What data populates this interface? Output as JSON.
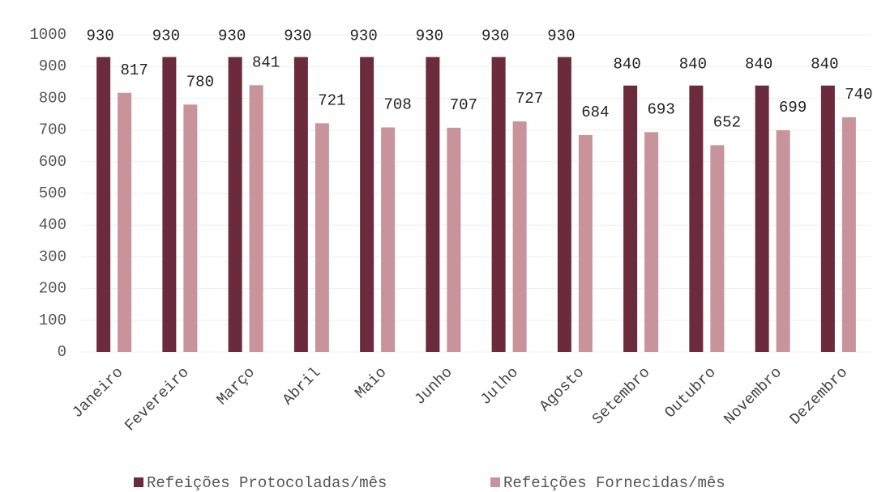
{
  "chart_data": {
    "type": "bar",
    "categories": [
      "Janeiro",
      "Fevereiro",
      "Março",
      "Abril",
      "Maio",
      "Junho",
      "Julho",
      "Agosto",
      "Setembro",
      "Outubro",
      "Novembro",
      "Dezembro"
    ],
    "series": [
      {
        "name": "Refeições Protocoladas/mês",
        "color": "#6b2b3d",
        "values": [
          930,
          930,
          930,
          930,
          930,
          930,
          930,
          930,
          840,
          840,
          840,
          840
        ]
      },
      {
        "name": "Refeições Fornecidas/mês",
        "color": "#c8939a",
        "values": [
          817,
          780,
          841,
          721,
          708,
          707,
          727,
          684,
          693,
          652,
          699,
          740
        ]
      }
    ],
    "ylim": [
      0,
      1000
    ],
    "yticks": [
      0,
      100,
      200,
      300,
      400,
      500,
      600,
      700,
      800,
      900,
      1000
    ],
    "grid": true,
    "legend": "bottom"
  }
}
